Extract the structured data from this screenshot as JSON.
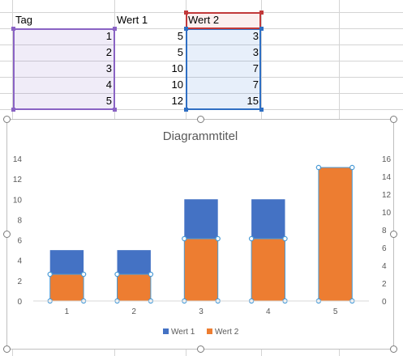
{
  "sheet": {
    "headers": {
      "col_a": "Tag",
      "col_b": "Wert 1",
      "col_c": "Wert 2"
    },
    "rows": [
      {
        "tag": "1",
        "wert1": "5",
        "wert2": "3"
      },
      {
        "tag": "2",
        "wert1": "5",
        "wert2": "3"
      },
      {
        "tag": "3",
        "wert1": "10",
        "wert2": "7"
      },
      {
        "tag": "4",
        "wert1": "10",
        "wert2": "7"
      },
      {
        "tag": "5",
        "wert1": "12",
        "wert2": "15"
      }
    ]
  },
  "colors": {
    "wert1": "#4472c4",
    "wert2": "#ed7d31",
    "selection_tag": "#8a63c4",
    "selection_wert2": "#2f6fc3",
    "selection_header": "#c1393a"
  },
  "chart_data": {
    "type": "bar",
    "title": "Diagrammtitel",
    "categories": [
      "1",
      "2",
      "3",
      "4",
      "5"
    ],
    "series": [
      {
        "name": "Wert 1",
        "values": [
          5,
          5,
          10,
          10,
          12
        ],
        "axis": "primary",
        "color": "#4472c4"
      },
      {
        "name": "Wert 2",
        "values": [
          3,
          3,
          7,
          7,
          15
        ],
        "axis": "secondary",
        "color": "#ed7d31"
      }
    ],
    "primary_ylim": [
      0,
      14
    ],
    "primary_ticks": [
      "0",
      "2",
      "4",
      "6",
      "8",
      "10",
      "12",
      "14"
    ],
    "secondary_ylim": [
      0,
      16
    ],
    "secondary_ticks": [
      "0",
      "2",
      "4",
      "6",
      "8",
      "10",
      "12",
      "14",
      "16"
    ],
    "legend": "bottom",
    "grid": false
  }
}
